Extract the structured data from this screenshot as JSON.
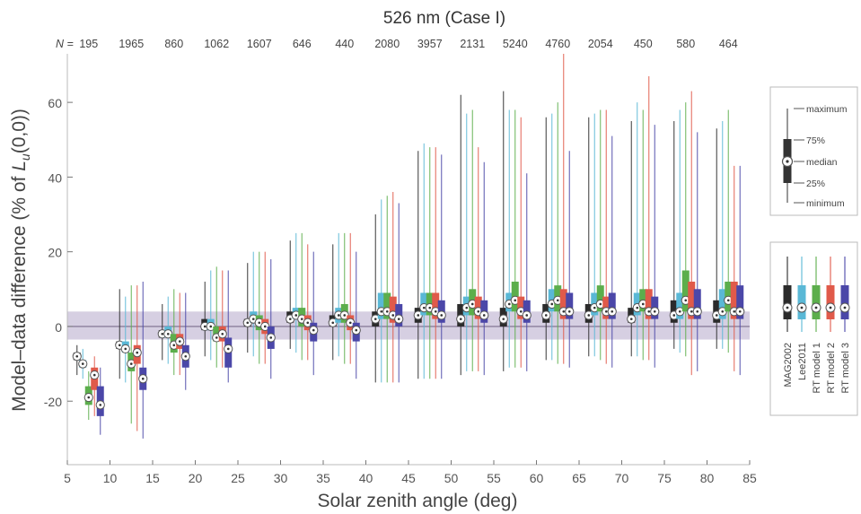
{
  "chart_data": {
    "type": "boxplot",
    "title": "526 nm (Case I)",
    "n_label": "N =",
    "n_values": [
      "195",
      "1965",
      "860",
      "1062",
      "1607",
      "646",
      "440",
      "2080",
      "3957",
      "2131",
      "5240",
      "4760",
      "2054",
      "450",
      "580",
      "464"
    ],
    "xlabel": "Solar zenith angle (deg)",
    "ylabel_prefix": "Model–data difference (% of ",
    "ylabel_symbol": "L",
    "ylabel_sub": "u",
    "ylabel_suffix": "(0,0))",
    "xlim": [
      5,
      85
    ],
    "ylim": [
      -37,
      73
    ],
    "xticks": [
      5,
      10,
      15,
      20,
      25,
      30,
      35,
      40,
      45,
      50,
      55,
      60,
      65,
      70,
      75,
      80,
      85
    ],
    "yticks": [
      -20,
      0,
      20,
      40,
      60
    ],
    "x_groups": [
      7.5,
      12.5,
      17.5,
      22.5,
      27.5,
      32.5,
      37.5,
      42.5,
      47.5,
      52.5,
      57.5,
      62.5,
      67.5,
      72.5,
      77.5,
      82.5
    ],
    "uncertainty_band": [
      -3.5,
      4
    ],
    "series": [
      {
        "name": "MAG2002",
        "color": "#2b2b2b",
        "boxes": [
          [
            -13,
            -9,
            -8,
            -7,
            -5
          ],
          [
            -14,
            -6,
            -5,
            -4,
            10
          ],
          [
            -9,
            -3,
            -2,
            -1,
            6
          ],
          [
            -8,
            -1,
            0,
            2,
            12
          ],
          [
            -7,
            0,
            1,
            2,
            17
          ],
          [
            -6,
            1,
            2,
            4,
            23
          ],
          [
            -9,
            0,
            1,
            3,
            22
          ],
          [
            -15,
            0,
            2,
            4,
            30
          ],
          [
            -14,
            1,
            3,
            5,
            47
          ],
          [
            -13,
            0,
            2,
            6,
            62
          ],
          [
            -12,
            0,
            2,
            5,
            63
          ],
          [
            -9,
            1,
            3,
            6,
            56
          ],
          [
            -8,
            1,
            3,
            6,
            56
          ],
          [
            -8,
            1,
            2,
            5,
            55
          ],
          [
            -6,
            1,
            3,
            7,
            55
          ],
          [
            -6,
            1,
            3,
            7,
            53
          ]
        ]
      },
      {
        "name": "Lee2011",
        "color": "#5ab8d6",
        "boxes": [
          [
            -14,
            -11,
            -10,
            -9,
            -6
          ],
          [
            -15,
            -7,
            -6,
            -4,
            8
          ],
          [
            -10,
            -3,
            -2,
            0,
            8
          ],
          [
            -9,
            -1,
            0,
            2,
            15
          ],
          [
            -8,
            1,
            2,
            4,
            20
          ],
          [
            -7,
            2,
            3,
            5,
            25
          ],
          [
            -8,
            1,
            3,
            5,
            25
          ],
          [
            -15,
            2,
            4,
            9,
            34
          ],
          [
            -14,
            3,
            5,
            9,
            49
          ],
          [
            -12,
            3,
            5,
            8,
            57
          ],
          [
            -11,
            4,
            6,
            9,
            58
          ],
          [
            -9,
            4,
            6,
            10,
            57
          ],
          [
            -8,
            3,
            5,
            9,
            57
          ],
          [
            -8,
            3,
            5,
            9,
            60
          ],
          [
            -7,
            2,
            4,
            9,
            58
          ],
          [
            -6,
            2,
            4,
            10,
            55
          ]
        ]
      },
      {
        "name": "RT model 1",
        "color": "#5cae4c",
        "boxes": [
          [
            -25,
            -21,
            -19,
            -16,
            -12
          ],
          [
            -26,
            -12,
            -10,
            -7,
            11
          ],
          [
            -13,
            -7,
            -5,
            -2,
            10
          ],
          [
            -11,
            -4,
            -3,
            0,
            16
          ],
          [
            -10,
            -1,
            1,
            3,
            20
          ],
          [
            -9,
            0,
            2,
            5,
            25
          ],
          [
            -10,
            1,
            3,
            6,
            25
          ],
          [
            -15,
            2,
            4,
            9,
            35
          ],
          [
            -14,
            3,
            5,
            9,
            48
          ],
          [
            -12,
            3,
            6,
            10,
            58
          ],
          [
            -11,
            4,
            7,
            12,
            58
          ],
          [
            -10,
            4,
            7,
            11,
            60
          ],
          [
            -9,
            4,
            6,
            11,
            58
          ],
          [
            -9,
            4,
            6,
            10,
            58
          ],
          [
            -8,
            4,
            7,
            15,
            60
          ],
          [
            -7,
            4,
            7,
            12,
            58
          ]
        ]
      },
      {
        "name": "RT model 2",
        "color": "#e05a4a",
        "boxes": [
          [
            -24,
            -17,
            -13,
            -11,
            -8
          ],
          [
            -28,
            -10,
            -7,
            -5,
            11
          ],
          [
            -13,
            -6,
            -4,
            -2,
            9
          ],
          [
            -11,
            -4,
            -2,
            0,
            15
          ],
          [
            -10,
            -2,
            0,
            2,
            20
          ],
          [
            -9,
            -1,
            1,
            3,
            22
          ],
          [
            -10,
            -1,
            1,
            3,
            25
          ],
          [
            -15,
            1,
            3,
            8,
            36
          ],
          [
            -14,
            2,
            4,
            9,
            48
          ],
          [
            -12,
            2,
            4,
            8,
            48
          ],
          [
            -11,
            2,
            4,
            8,
            56
          ],
          [
            -10,
            2,
            4,
            10,
            73
          ],
          [
            -10,
            2,
            4,
            8,
            58
          ],
          [
            -9,
            2,
            4,
            10,
            67
          ],
          [
            -13,
            2,
            4,
            12,
            63
          ],
          [
            -12,
            2,
            4,
            12,
            43
          ]
        ]
      },
      {
        "name": "RT model 3",
        "color": "#4b47a8",
        "boxes": [
          [
            -29,
            -24,
            -21,
            -16,
            -11
          ],
          [
            -30,
            -17,
            -14,
            -11,
            12
          ],
          [
            -17,
            -11,
            -8,
            -5,
            9
          ],
          [
            -15,
            -11,
            -6,
            -3,
            15
          ],
          [
            -14,
            -6,
            -3,
            0,
            18
          ],
          [
            -13,
            -4,
            -1,
            1,
            20
          ],
          [
            -14,
            -4,
            -1,
            1,
            20
          ],
          [
            -15,
            0,
            2,
            6,
            33
          ],
          [
            -14,
            1,
            3,
            7,
            46
          ],
          [
            -13,
            1,
            3,
            7,
            44
          ],
          [
            -12,
            1,
            3,
            7,
            41
          ],
          [
            -11,
            2,
            4,
            9,
            47
          ],
          [
            -11,
            2,
            4,
            9,
            51
          ],
          [
            -11,
            2,
            4,
            8,
            54
          ],
          [
            -12,
            2,
            4,
            10,
            52
          ],
          [
            -13,
            2,
            4,
            11,
            43
          ]
        ]
      }
    ],
    "legend_box": {
      "maximum": "maximum",
      "p75": "75%",
      "median": "median",
      "p25": "25%",
      "minimum": "minimum"
    },
    "legend_series": [
      "MAG2002",
      "Lee2011",
      "RT model 1",
      "RT model 2",
      "RT model 3"
    ],
    "grid": false,
    "legend_position": "right"
  }
}
